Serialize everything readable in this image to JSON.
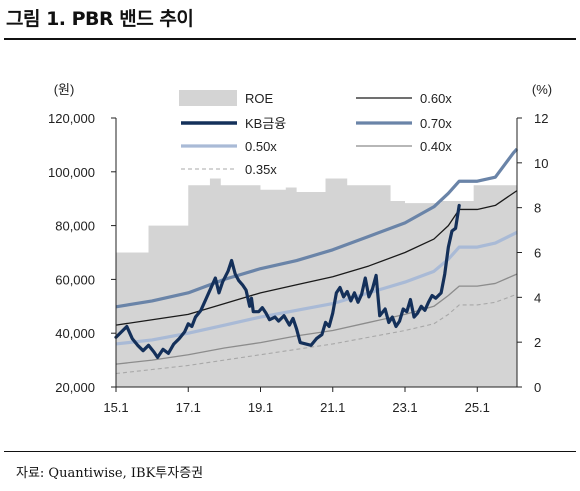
{
  "figure": {
    "title": "그림 1. PBR 밴드 추이",
    "source": "자료: Quantiwise, IBK투자증권"
  },
  "chart_data": {
    "type": "line",
    "y_left": {
      "label": "(원)",
      "range": [
        20000,
        120000
      ],
      "ticks": [
        20000,
        40000,
        60000,
        80000,
        100000,
        120000
      ],
      "tick_labels": [
        "20,000",
        "40,000",
        "60,000",
        "80,000",
        "100,000",
        "120,000"
      ]
    },
    "y_right": {
      "label": "(%)",
      "range": [
        0,
        12
      ],
      "ticks": [
        0,
        2,
        4,
        6,
        8,
        10,
        12
      ],
      "tick_labels": [
        "0",
        "2",
        "4",
        "6",
        "8",
        "10",
        "12"
      ]
    },
    "x": {
      "range": [
        2015.0,
        2026.1
      ],
      "ticks": [
        2015.0,
        2017.0,
        2019.0,
        2021.0,
        2023.0,
        2025.0
      ],
      "tick_labels": [
        "15.1",
        "17.1",
        "19.1",
        "21.1",
        "23.1",
        "25.1"
      ]
    },
    "legend": [
      {
        "key": "roe",
        "label": "ROE"
      },
      {
        "key": "pbr060",
        "label": "0.60x"
      },
      {
        "key": "kb",
        "label": "KB금융"
      },
      {
        "key": "pbr070",
        "label": "0.70x"
      },
      {
        "key": "pbr050",
        "label": "0.50x"
      },
      {
        "key": "pbr040",
        "label": "0.40x"
      },
      {
        "key": "pbr035",
        "label": "0.35x"
      }
    ],
    "legend_position": "top",
    "colors": {
      "roe": "#d4d4d4",
      "kb": "#14305a",
      "pbr070": "#6a84a8",
      "pbr060": "#1a1a1a",
      "pbr050": "#a9bad6",
      "pbr040": "#8c8c8c",
      "pbr035": "#a8a8a8"
    },
    "roe": {
      "axis": "right",
      "steps": [
        [
          2015.0,
          6.0
        ],
        [
          2015.9,
          7.2
        ],
        [
          2017.0,
          9.0
        ],
        [
          2017.6,
          9.3
        ],
        [
          2017.9,
          9.0
        ],
        [
          2019.0,
          8.8
        ],
        [
          2019.7,
          8.9
        ],
        [
          2020.0,
          8.7
        ],
        [
          2020.8,
          9.3
        ],
        [
          2021.4,
          9.0
        ],
        [
          2022.6,
          8.3
        ],
        [
          2023.0,
          8.2
        ],
        [
          2024.0,
          8.3
        ],
        [
          2024.9,
          9.0
        ],
        [
          2026.1,
          9.0
        ]
      ]
    },
    "bands": [
      {
        "key": "pbr070",
        "points": [
          [
            2015.0,
            49800
          ],
          [
            2016.0,
            52000
          ],
          [
            2017.0,
            55000
          ],
          [
            2018.0,
            60000
          ],
          [
            2019.0,
            64000
          ],
          [
            2020.0,
            67000
          ],
          [
            2021.0,
            71000
          ],
          [
            2022.0,
            76000
          ],
          [
            2023.0,
            81000
          ],
          [
            2023.8,
            87000
          ],
          [
            2024.2,
            92000
          ],
          [
            2024.5,
            96500
          ],
          [
            2025.0,
            96500
          ],
          [
            2025.5,
            98000
          ],
          [
            2026.0,
            107000
          ],
          [
            2026.1,
            108500
          ]
        ]
      },
      {
        "key": "pbr060",
        "points": [
          [
            2015.0,
            43000
          ],
          [
            2016.0,
            45000
          ],
          [
            2017.0,
            47000
          ],
          [
            2018.0,
            51000
          ],
          [
            2019.0,
            55000
          ],
          [
            2020.0,
            58000
          ],
          [
            2021.0,
            61000
          ],
          [
            2022.0,
            65000
          ],
          [
            2023.0,
            70000
          ],
          [
            2023.8,
            75000
          ],
          [
            2024.2,
            80000
          ],
          [
            2024.5,
            86000
          ],
          [
            2025.0,
            86000
          ],
          [
            2025.5,
            87500
          ],
          [
            2026.1,
            93000
          ]
        ]
      },
      {
        "key": "pbr050",
        "points": [
          [
            2015.0,
            36000
          ],
          [
            2016.0,
            37500
          ],
          [
            2017.0,
            40000
          ],
          [
            2018.0,
            43000
          ],
          [
            2019.0,
            46000
          ],
          [
            2020.0,
            48500
          ],
          [
            2021.0,
            51000
          ],
          [
            2022.0,
            55000
          ],
          [
            2023.0,
            59000
          ],
          [
            2023.8,
            63000
          ],
          [
            2024.2,
            67500
          ],
          [
            2024.5,
            72000
          ],
          [
            2025.0,
            72000
          ],
          [
            2025.5,
            73500
          ],
          [
            2026.1,
            77500
          ]
        ]
      },
      {
        "key": "pbr040",
        "points": [
          [
            2015.0,
            28500
          ],
          [
            2016.0,
            30000
          ],
          [
            2017.0,
            32000
          ],
          [
            2018.0,
            34500
          ],
          [
            2019.0,
            36500
          ],
          [
            2020.0,
            39000
          ],
          [
            2021.0,
            41000
          ],
          [
            2022.0,
            44000
          ],
          [
            2023.0,
            47000
          ],
          [
            2023.8,
            50000
          ],
          [
            2024.2,
            54000
          ],
          [
            2024.5,
            57500
          ],
          [
            2025.0,
            57500
          ],
          [
            2025.5,
            58500
          ],
          [
            2026.1,
            62000
          ]
        ]
      },
      {
        "key": "pbr035",
        "points": [
          [
            2015.0,
            25000
          ],
          [
            2016.0,
            26500
          ],
          [
            2017.0,
            28000
          ],
          [
            2018.0,
            30000
          ],
          [
            2019.0,
            32000
          ],
          [
            2020.0,
            34000
          ],
          [
            2021.0,
            36000
          ],
          [
            2022.0,
            38500
          ],
          [
            2023.0,
            41000
          ],
          [
            2023.8,
            43500
          ],
          [
            2024.2,
            47000
          ],
          [
            2024.5,
            50500
          ],
          [
            2025.0,
            50500
          ],
          [
            2025.5,
            51500
          ],
          [
            2026.1,
            54500
          ]
        ]
      }
    ],
    "kb_series": {
      "key": "kb",
      "points": [
        [
          2015.0,
          38500
        ],
        [
          2015.15,
          40500
        ],
        [
          2015.3,
          42500
        ],
        [
          2015.45,
          38000
        ],
        [
          2015.6,
          35500
        ],
        [
          2015.75,
          33500
        ],
        [
          2015.9,
          35500
        ],
        [
          2016.05,
          33000
        ],
        [
          2016.15,
          31000
        ],
        [
          2016.3,
          34000
        ],
        [
          2016.45,
          32500
        ],
        [
          2016.6,
          36000
        ],
        [
          2016.75,
          38000
        ],
        [
          2016.9,
          40500
        ],
        [
          2017.0,
          43500
        ],
        [
          2017.1,
          42500
        ],
        [
          2017.2,
          46000
        ],
        [
          2017.35,
          48500
        ],
        [
          2017.5,
          53000
        ],
        [
          2017.6,
          56000
        ],
        [
          2017.75,
          60500
        ],
        [
          2017.85,
          55000
        ],
        [
          2017.95,
          59000
        ],
        [
          2018.1,
          63000
        ],
        [
          2018.2,
          67000
        ],
        [
          2018.3,
          62000
        ],
        [
          2018.4,
          59500
        ],
        [
          2018.5,
          58000
        ],
        [
          2018.6,
          56000
        ],
        [
          2018.7,
          50000
        ],
        [
          2018.75,
          53000
        ],
        [
          2018.8,
          48000
        ],
        [
          2018.95,
          48000
        ],
        [
          2019.05,
          49500
        ],
        [
          2019.15,
          47500
        ],
        [
          2019.25,
          45000
        ],
        [
          2019.4,
          46000
        ],
        [
          2019.5,
          44500
        ],
        [
          2019.65,
          46500
        ],
        [
          2019.8,
          43000
        ],
        [
          2019.9,
          45500
        ],
        [
          2020.0,
          41500
        ],
        [
          2020.1,
          36500
        ],
        [
          2020.25,
          36000
        ],
        [
          2020.4,
          35500
        ],
        [
          2020.55,
          38000
        ],
        [
          2020.7,
          39500
        ],
        [
          2020.8,
          44000
        ],
        [
          2020.9,
          42500
        ],
        [
          2021.0,
          47500
        ],
        [
          2021.1,
          55000
        ],
        [
          2021.2,
          57000
        ],
        [
          2021.3,
          53500
        ],
        [
          2021.4,
          55500
        ],
        [
          2021.5,
          52000
        ],
        [
          2021.6,
          55000
        ],
        [
          2021.7,
          51500
        ],
        [
          2021.8,
          54500
        ],
        [
          2021.9,
          60500
        ],
        [
          2022.0,
          53500
        ],
        [
          2022.1,
          56500
        ],
        [
          2022.2,
          61500
        ],
        [
          2022.3,
          46500
        ],
        [
          2022.45,
          49000
        ],
        [
          2022.55,
          44000
        ],
        [
          2022.65,
          46000
        ],
        [
          2022.75,
          42500
        ],
        [
          2022.85,
          44500
        ],
        [
          2022.95,
          49000
        ],
        [
          2023.05,
          48000
        ],
        [
          2023.15,
          52500
        ],
        [
          2023.25,
          46000
        ],
        [
          2023.35,
          47500
        ],
        [
          2023.45,
          50000
        ],
        [
          2023.55,
          48500
        ],
        [
          2023.65,
          51500
        ],
        [
          2023.75,
          54000
        ],
        [
          2023.85,
          53000
        ],
        [
          2024.0,
          55000
        ],
        [
          2024.1,
          62000
        ],
        [
          2024.2,
          72000
        ],
        [
          2024.3,
          78000
        ],
        [
          2024.4,
          79000
        ],
        [
          2024.5,
          87500
        ]
      ]
    }
  }
}
